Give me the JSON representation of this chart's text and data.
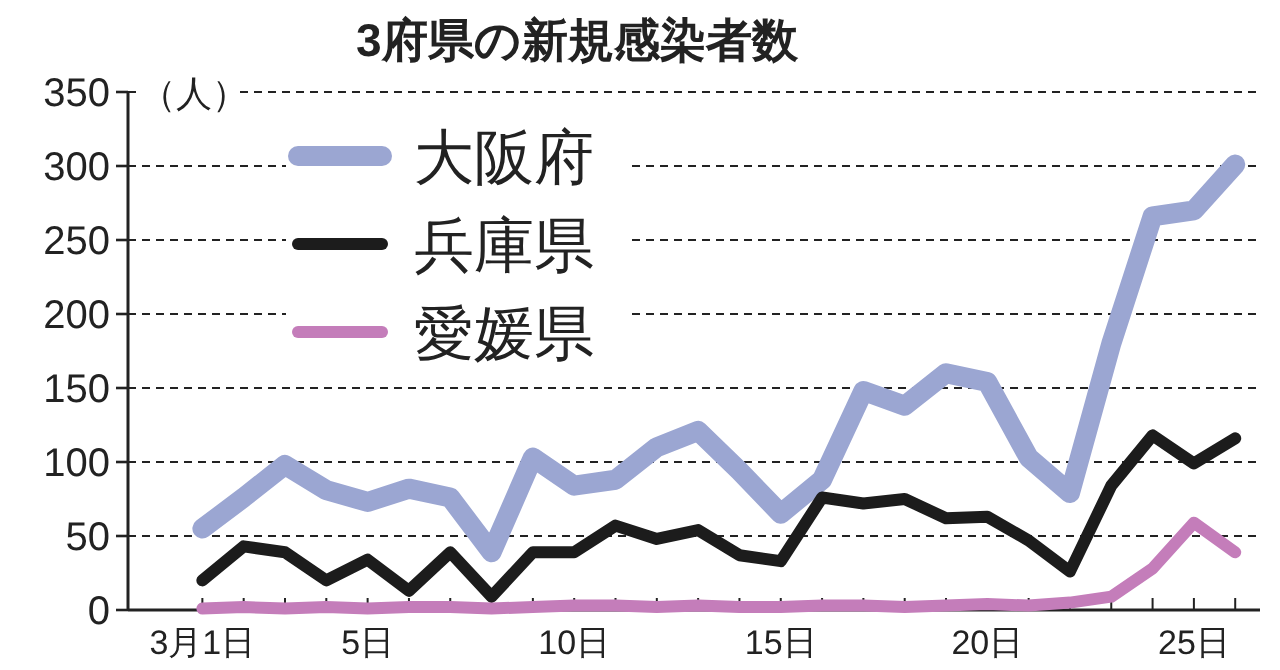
{
  "chart_data": {
    "type": "line",
    "title": "3府県の新規感染者数",
    "ylabel": "（人）",
    "x": [
      1,
      2,
      3,
      4,
      5,
      6,
      7,
      8,
      9,
      10,
      11,
      12,
      13,
      14,
      15,
      16,
      17,
      18,
      19,
      20,
      21,
      22,
      23,
      24,
      25,
      26
    ],
    "series": [
      {
        "name": "大阪府",
        "color": "#9ba6d2",
        "values": [
          55,
          76,
          98,
          81,
          73,
          82,
          76,
          39,
          103,
          84,
          88,
          110,
          121,
          94,
          65,
          88,
          148,
          138,
          160,
          154,
          103,
          79,
          180,
          266,
          270,
          301
        ]
      },
      {
        "name": "兵庫県",
        "color": "#1c1c1c",
        "values": [
          20,
          43,
          39,
          20,
          34,
          13,
          39,
          9,
          39,
          39,
          57,
          48,
          54,
          37,
          33,
          76,
          72,
          75,
          62,
          63,
          47,
          26,
          84,
          118,
          99,
          116
        ]
      },
      {
        "name": "愛媛県",
        "color": "#c47dba",
        "values": [
          1,
          2,
          1,
          2,
          1,
          2,
          2,
          1,
          2,
          3,
          3,
          2,
          3,
          2,
          2,
          3,
          3,
          2,
          3,
          4,
          3,
          5,
          9,
          28,
          59,
          39
        ]
      }
    ],
    "xlim": [
      -0.8,
      26.6
    ],
    "ylim": [
      0,
      350
    ],
    "xticks": [
      {
        "value": 1,
        "label": "3月1日"
      },
      {
        "value": 2,
        "label": null
      },
      {
        "value": 3,
        "label": null
      },
      {
        "value": 4,
        "label": null
      },
      {
        "value": 5,
        "label": "5日"
      },
      {
        "value": 6,
        "label": null
      },
      {
        "value": 7,
        "label": null
      },
      {
        "value": 8,
        "label": null
      },
      {
        "value": 9,
        "label": null
      },
      {
        "value": 10,
        "label": "10日"
      },
      {
        "value": 11,
        "label": null
      },
      {
        "value": 12,
        "label": null
      },
      {
        "value": 13,
        "label": null
      },
      {
        "value": 14,
        "label": null
      },
      {
        "value": 15,
        "label": "15日"
      },
      {
        "value": 16,
        "label": null
      },
      {
        "value": 17,
        "label": null
      },
      {
        "value": 18,
        "label": null
      },
      {
        "value": 19,
        "label": null
      },
      {
        "value": 20,
        "label": "20日"
      },
      {
        "value": 21,
        "label": null
      },
      {
        "value": 22,
        "label": null
      },
      {
        "value": 23,
        "label": null
      },
      {
        "value": 24,
        "label": null
      },
      {
        "value": 25,
        "label": "25日"
      },
      {
        "value": 26,
        "label": null
      }
    ],
    "yticks": [
      0,
      50,
      100,
      150,
      200,
      250,
      300,
      350
    ],
    "grid": "y",
    "legend": "top left",
    "line_style": "solid"
  }
}
